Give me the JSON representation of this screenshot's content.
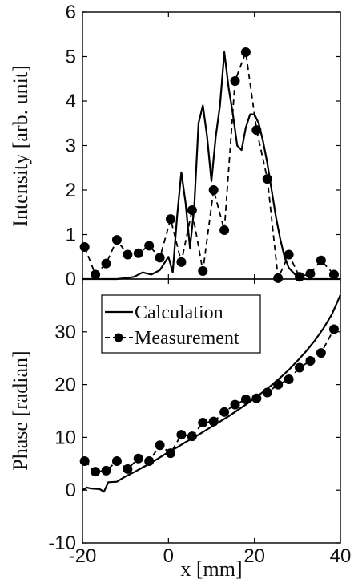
{
  "chart_data": [
    {
      "type": "line",
      "xlabel": "",
      "ylabel": "Intensity [arb. unit]",
      "xlim": [
        -20,
        40
      ],
      "ylim": [
        0,
        6
      ],
      "yticks": [
        "0",
        "1",
        "2",
        "3",
        "4",
        "5",
        "6"
      ],
      "series": [
        {
          "name": "Calculation",
          "style": "solid",
          "x": [
            -20,
            -18,
            -16,
            -14,
            -12,
            -10,
            -8,
            -6,
            -4,
            -2,
            0,
            1,
            2,
            3,
            4,
            5,
            6,
            7,
            8,
            9,
            10,
            11,
            12,
            13,
            14,
            15,
            16,
            17,
            18,
            19,
            20,
            21,
            22,
            23,
            24,
            25,
            26,
            27,
            28,
            30,
            32,
            34,
            36,
            38,
            40
          ],
          "values": [
            0,
            0,
            0,
            0,
            0,
            0.02,
            0.05,
            0.15,
            0.1,
            0.2,
            0.5,
            0.15,
            1.4,
            2.4,
            1.7,
            0.7,
            1.6,
            3.5,
            3.9,
            3.2,
            2.2,
            3.2,
            3.9,
            5.1,
            4.3,
            3.7,
            3.0,
            2.9,
            3.4,
            3.7,
            3.7,
            3.5,
            3.1,
            2.6,
            2.0,
            1.4,
            0.9,
            0.5,
            0.25,
            0.05,
            0,
            0,
            0,
            0,
            0
          ]
        },
        {
          "name": "Measurement",
          "style": "dashed-markers",
          "x": [
            -19.5,
            -17,
            -14.5,
            -12,
            -9.5,
            -7,
            -4.5,
            -2,
            0.5,
            3,
            5.5,
            8,
            10.5,
            13,
            15.5,
            18,
            20.5,
            23,
            25.5,
            28,
            30.5,
            33,
            35.5,
            38.5
          ],
          "values": [
            0.72,
            0.1,
            0.35,
            0.88,
            0.55,
            0.58,
            0.75,
            0.48,
            1.35,
            0.38,
            1.55,
            0.18,
            2.0,
            1.1,
            4.45,
            5.1,
            3.35,
            2.25,
            0.02,
            0.55,
            0.05,
            0.12,
            0.42,
            0.1
          ]
        }
      ]
    },
    {
      "type": "line",
      "xlabel": "x [mm]",
      "ylabel": "Phase [radian]",
      "xlim": [
        -20,
        40
      ],
      "ylim": [
        -10,
        40
      ],
      "xticks": [
        "-20",
        "0",
        "20",
        "40"
      ],
      "yticks": [
        "-10",
        "0",
        "10",
        "20",
        "30"
      ],
      "legend": {
        "position": "top-left",
        "entries": [
          "Calculation",
          "Measurement"
        ]
      },
      "series": [
        {
          "name": "Calculation",
          "style": "solid",
          "x": [
            -20,
            -19,
            -18,
            -16,
            -15,
            -14,
            -12,
            -10,
            -8,
            -6,
            -4,
            -2,
            0,
            2,
            4,
            6,
            8,
            10,
            12,
            14,
            16,
            18,
            20,
            22,
            24,
            26,
            28,
            30,
            32,
            34,
            36,
            38,
            40
          ],
          "values": [
            0,
            0.5,
            0.3,
            0.2,
            -0.3,
            1.5,
            1.6,
            2.6,
            3.4,
            4.3,
            5.2,
            6.2,
            7.2,
            8.1,
            9.1,
            10.0,
            11.0,
            12.0,
            13.0,
            14.0,
            15.1,
            16.2,
            17.4,
            18.6,
            19.9,
            21.3,
            22.8,
            24.5,
            26.3,
            28.3,
            30.6,
            33.3,
            37.0
          ]
        },
        {
          "name": "Measurement",
          "style": "dashed-markers",
          "x": [
            -19.5,
            -17,
            -14.5,
            -12,
            -9.5,
            -7,
            -4.5,
            -2,
            0.5,
            3,
            5.5,
            8,
            10.5,
            13,
            15.5,
            18,
            20.5,
            23,
            25.5,
            28,
            30.5,
            33,
            35.5,
            38.5
          ],
          "values": [
            5.5,
            3.5,
            3.7,
            5.5,
            4.0,
            6.0,
            5.5,
            8.5,
            7.0,
            10.5,
            10.2,
            12.8,
            13.0,
            14.8,
            16.2,
            17.2,
            17.4,
            18.5,
            20.0,
            21.0,
            23.2,
            24.5,
            26.0,
            30.5
          ]
        }
      ]
    }
  ]
}
